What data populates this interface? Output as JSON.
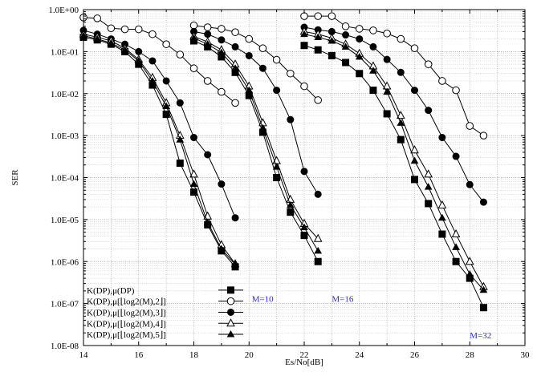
{
  "chart_data": {
    "type": "line",
    "title": "",
    "xlabel": "Es/No[dB]",
    "ylabel": "SER",
    "xlim": [
      14,
      30
    ],
    "ylim": [
      1e-08,
      1
    ],
    "yscale": "log",
    "grid": true,
    "legend_placement": "bottom-left",
    "x_ticks": [
      "14",
      "16",
      "18",
      "20",
      "22",
      "24",
      "26",
      "28",
      "30"
    ],
    "y_ticks": [
      "1.0E+00",
      "1.0E-01",
      "1.0E-02",
      "1.0E-03",
      "1.0E-04",
      "1.0E-05",
      "1.0E-06",
      "1.0E-07",
      "1.0E-08"
    ],
    "annotations": [
      {
        "text": "M=10",
        "x": 20.1,
        "y": 1.1e-07,
        "color": "#2a2ad4"
      },
      {
        "text": "M=16",
        "x": 23.0,
        "y": 1.1e-07,
        "color": "#2a2ad4"
      },
      {
        "text": "M=32",
        "x": 28.0,
        "y": 1.5e-08,
        "color": "#2a2ad4"
      }
    ],
    "series": [
      {
        "name": "K(DP),μ(DP)",
        "marker": "filled-square",
        "segments": [
          {
            "x": [
              14,
              14.5,
              15,
              15.5,
              16,
              16.5,
              17,
              17.5,
              18,
              18.5,
              19,
              19.5
            ],
            "y": [
              0.22,
              0.19,
              0.15,
              0.1,
              0.05,
              0.016,
              0.0032,
              0.00022,
              4.5e-05,
              7.5e-06,
              1.8e-06,
              7.5e-07
            ]
          },
          {
            "x": [
              18,
              18.5,
              19,
              19.5,
              20,
              20.5,
              21,
              21.5,
              22,
              22.5
            ],
            "y": [
              0.18,
              0.13,
              0.075,
              0.032,
              0.009,
              0.0012,
              0.0001,
              1.5e-05,
              4.2e-06,
              1e-06
            ]
          },
          {
            "x": [
              22,
              22.5,
              23,
              23.5,
              24,
              24.5,
              25,
              25.5,
              26,
              26.5,
              27,
              27.5,
              28,
              28.5
            ],
            "y": [
              0.14,
              0.11,
              0.08,
              0.055,
              0.03,
              0.012,
              0.0033,
              0.0008,
              9e-05,
              2.4e-05,
              4.5e-06,
              1e-06,
              4e-07,
              8e-08
            ]
          }
        ]
      },
      {
        "name": "K(DP),μ[⌊log2(M),2⌋]",
        "marker": "open-circle",
        "segments": [
          {
            "x": [
              14,
              14.5,
              15,
              15.5,
              16,
              16.5,
              17,
              17.5,
              18,
              18.5,
              19,
              19.5
            ],
            "y": [
              0.65,
              0.62,
              0.36,
              0.34,
              0.34,
              0.26,
              0.15,
              0.085,
              0.04,
              0.02,
              0.011,
              0.006
            ]
          },
          {
            "x": [
              18,
              18.5,
              19,
              19.5,
              20,
              20.5,
              21,
              21.5,
              22,
              22.5
            ],
            "y": [
              0.42,
              0.38,
              0.35,
              0.29,
              0.2,
              0.12,
              0.064,
              0.03,
              0.015,
              0.007
            ]
          },
          {
            "x": [
              22,
              22.5,
              23,
              23.5,
              24,
              24.5,
              25,
              25.5,
              26,
              26.5,
              27,
              27.5,
              28,
              28.5
            ],
            "y": [
              0.7,
              0.7,
              0.7,
              0.4,
              0.35,
              0.32,
              0.27,
              0.2,
              0.12,
              0.05,
              0.02,
              0.012,
              0.0017,
              0.001
            ]
          }
        ]
      },
      {
        "name": "K(DP),μ[⌊log2(M),3⌋]",
        "marker": "filled-circle",
        "segments": [
          {
            "x": [
              14,
              14.5,
              15,
              15.5,
              16,
              16.5,
              17,
              17.5,
              18,
              18.5,
              19,
              19.5
            ],
            "y": [
              0.32,
              0.26,
              0.2,
              0.15,
              0.1,
              0.06,
              0.02,
              0.006,
              0.0009,
              0.00035,
              7e-05,
              1.1e-05
            ]
          },
          {
            "x": [
              18,
              18.5,
              19,
              19.5,
              20,
              20.5,
              21,
              21.5,
              22,
              22.5
            ],
            "y": [
              0.3,
              0.26,
              0.19,
              0.13,
              0.08,
              0.04,
              0.012,
              0.0024,
              0.00014,
              4e-05
            ]
          },
          {
            "x": [
              22,
              22.5,
              23,
              23.5,
              24,
              24.5,
              25,
              25.5,
              26,
              26.5,
              27,
              27.5,
              28,
              28.5
            ],
            "y": [
              0.38,
              0.33,
              0.3,
              0.25,
              0.2,
              0.13,
              0.065,
              0.032,
              0.012,
              0.004,
              0.0009,
              0.00032,
              6.8e-05,
              2.6e-05
            ]
          }
        ]
      },
      {
        "name": "K(DP),μ[⌊log2(M),4⌋]",
        "marker": "open-triangle",
        "segments": [
          {
            "x": [
              14,
              14.5,
              15,
              15.5,
              16,
              16.5,
              17,
              17.5,
              18,
              18.5,
              19,
              19.5
            ],
            "y": [
              0.26,
              0.22,
              0.18,
              0.12,
              0.065,
              0.024,
              0.006,
              0.001,
              0.00012,
              1.2e-05,
              2.5e-06,
              8.8e-07
            ]
          },
          {
            "x": [
              18,
              18.5,
              19,
              19.5,
              20,
              20.5,
              21,
              21.5,
              22,
              22.5
            ],
            "y": [
              0.23,
              0.17,
              0.11,
              0.05,
              0.015,
              0.002,
              0.00025,
              3e-05,
              8e-06,
              3.5e-06
            ]
          },
          {
            "x": [
              22,
              22.5,
              23,
              23.5,
              24,
              24.5,
              25,
              25.5,
              26,
              26.5,
              27,
              27.5,
              28,
              28.5
            ],
            "y": [
              0.3,
              0.26,
              0.21,
              0.15,
              0.09,
              0.045,
              0.015,
              0.003,
              0.00045,
              0.00012,
              2.2e-05,
              4.5e-06,
              1e-06,
              2.5e-07
            ]
          }
        ]
      },
      {
        "name": "K(DP),μ[⌊log2(M),5⌋]",
        "marker": "filled-triangle",
        "segments": [
          {
            "x": [
              14,
              14.5,
              15,
              15.5,
              16,
              16.5,
              17,
              17.5,
              18,
              18.5,
              19,
              19.5
            ],
            "y": [
              0.24,
              0.2,
              0.16,
              0.11,
              0.06,
              0.02,
              0.005,
              0.0008,
              7e-05,
              8.5e-06,
              2e-06,
              8.5e-07
            ]
          },
          {
            "x": [
              18,
              18.5,
              19,
              19.5,
              20,
              20.5,
              21,
              21.5,
              22,
              22.5
            ],
            "y": [
              0.21,
              0.15,
              0.095,
              0.04,
              0.012,
              0.0015,
              0.00018,
              2.2e-05,
              6.5e-06,
              1.8e-06
            ]
          },
          {
            "x": [
              22,
              22.5,
              23,
              23.5,
              24,
              24.5,
              25,
              25.5,
              26,
              26.5,
              27,
              27.5,
              28,
              28.5
            ],
            "y": [
              0.26,
              0.22,
              0.18,
              0.13,
              0.075,
              0.035,
              0.011,
              0.002,
              0.00025,
              6e-05,
              1.1e-05,
              2.2e-06,
              5e-07,
              2.1e-07
            ]
          }
        ]
      }
    ]
  }
}
